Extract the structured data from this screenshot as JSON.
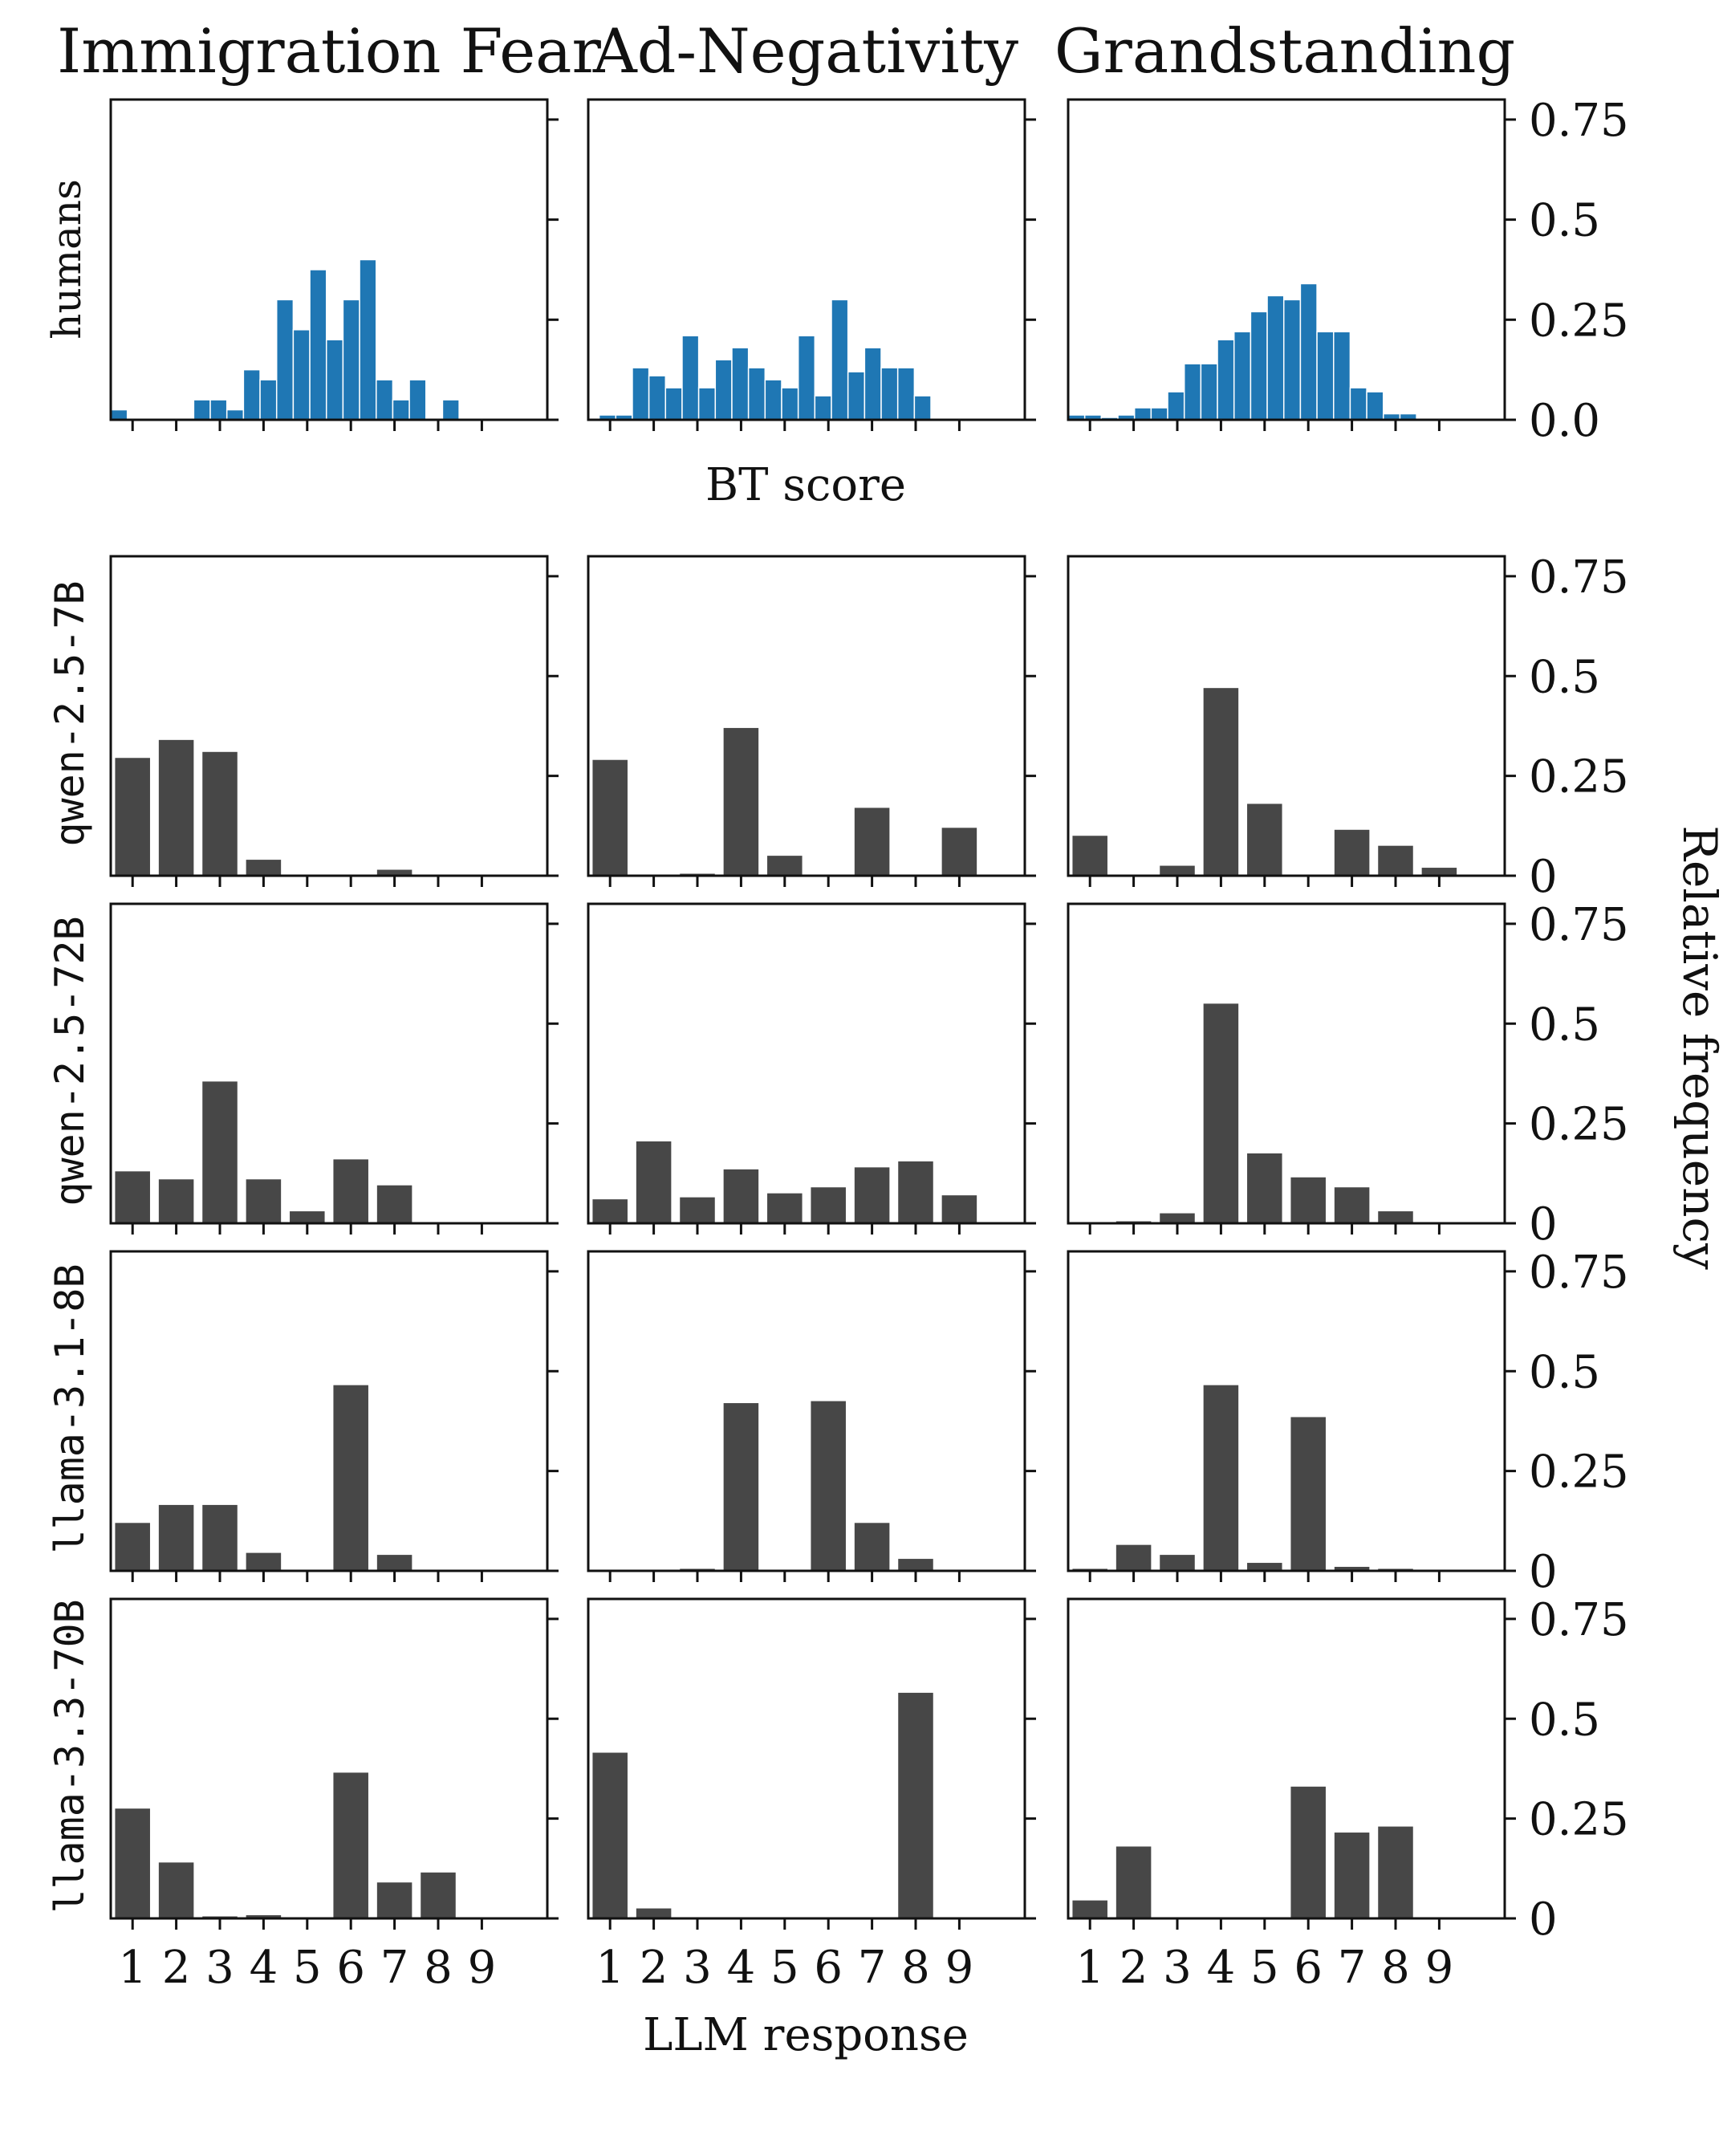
{
  "chart_data": {
    "type": "bar",
    "columns": [
      "Immigration Fear",
      "Ad-Negativity",
      "Grandstanding"
    ],
    "rows": [
      "humans",
      "qwen-2.5-7B",
      "qwen-2.5-72B",
      "llama-3.1-8B",
      "llama-3.3-70B"
    ],
    "top_row_xlabel": "BT score",
    "xlabel": "LLM response",
    "ylabel": "Relative frequency",
    "categories": [
      "1",
      "2",
      "3",
      "4",
      "5",
      "6",
      "7",
      "8",
      "9"
    ],
    "yticks": [
      "0.0",
      "0.25",
      "0.5",
      "0.75"
    ],
    "yticks_model_rows": [
      "0",
      "0.25",
      "0.5",
      "0.75"
    ],
    "ylim": [
      0,
      0.8
    ],
    "colors": {
      "humans": "#1f77b4",
      "models": "#474747"
    },
    "human_histograms": [
      {
        "column": "Immigration Fear",
        "x_start": 0.5,
        "bin_width": 0.38,
        "values": [
          0.025,
          0,
          0,
          0,
          0,
          0.05,
          0.05,
          0.025,
          0.125,
          0.1,
          0.3,
          0.225,
          0.375,
          0.2,
          0.3,
          0.4,
          0.1,
          0.05,
          0.1,
          0,
          0.05
        ]
      },
      {
        "column": "Ad-Negativity",
        "x_start": 0.75,
        "bin_width": 0.38,
        "values": [
          0.012,
          0.012,
          0.13,
          0.11,
          0.08,
          0.21,
          0.08,
          0.15,
          0.18,
          0.13,
          0.1,
          0.08,
          0.21,
          0.06,
          0.3,
          0.12,
          0.18,
          0.13,
          0.13,
          0.06
        ]
      },
      {
        "column": "Grandstanding",
        "x_start": 0.5,
        "bin_width": 0.38,
        "values": [
          0.012,
          0.012,
          0.006,
          0.012,
          0.03,
          0.03,
          0.07,
          0.14,
          0.14,
          0.2,
          0.22,
          0.27,
          0.31,
          0.3,
          0.34,
          0.22,
          0.22,
          0.08,
          0.07,
          0.015,
          0.015
        ]
      }
    ],
    "series": [
      {
        "name": "qwen-2.5-7B",
        "panels": [
          {
            "column": "Immigration Fear",
            "values": [
              0.295,
              0.34,
              0.31,
              0.04,
              0,
              0,
              0.015,
              0,
              0
            ]
          },
          {
            "column": "Ad-Negativity",
            "values": [
              0.29,
              0,
              0.005,
              0.37,
              0.05,
              0,
              0.17,
              0,
              0.12
            ]
          },
          {
            "column": "Grandstanding",
            "values": [
              0.1,
              0,
              0.025,
              0.47,
              0.18,
              0,
              0.115,
              0.075,
              0.02
            ]
          }
        ]
      },
      {
        "name": "qwen-2.5-72B",
        "panels": [
          {
            "column": "Immigration Fear",
            "values": [
              0.13,
              0.11,
              0.355,
              0.11,
              0.03,
              0.16,
              0.095,
              0,
              0
            ]
          },
          {
            "column": "Ad-Negativity",
            "values": [
              0.06,
              0.205,
              0.065,
              0.135,
              0.075,
              0.09,
              0.14,
              0.155,
              0.07
            ]
          },
          {
            "column": "Grandstanding",
            "values": [
              0,
              0.005,
              0.025,
              0.55,
              0.175,
              0.115,
              0.09,
              0.03,
              0
            ]
          }
        ]
      },
      {
        "name": "llama-3.1-8B",
        "panels": [
          {
            "column": "Immigration Fear",
            "values": [
              0.12,
              0.165,
              0.165,
              0.045,
              0,
              0.465,
              0.04,
              0,
              0
            ]
          },
          {
            "column": "Ad-Negativity",
            "values": [
              0,
              0,
              0.005,
              0.42,
              0,
              0.425,
              0.12,
              0.03,
              0
            ]
          },
          {
            "column": "Grandstanding",
            "values": [
              0.005,
              0.065,
              0.04,
              0.465,
              0.02,
              0.385,
              0.01,
              0.005,
              0
            ]
          }
        ]
      },
      {
        "name": "llama-3.3-70B",
        "panels": [
          {
            "column": "Immigration Fear",
            "values": [
              0.275,
              0.14,
              0.005,
              0.008,
              0,
              0.365,
              0.09,
              0.115,
              0
            ]
          },
          {
            "column": "Ad-Negativity",
            "values": [
              0.415,
              0.025,
              0,
              0,
              0,
              0,
              0,
              0.565,
              0
            ]
          },
          {
            "column": "Grandstanding",
            "values": [
              0.045,
              0.18,
              0,
              0,
              0,
              0.33,
              0.215,
              0.23,
              0
            ]
          }
        ]
      }
    ]
  }
}
